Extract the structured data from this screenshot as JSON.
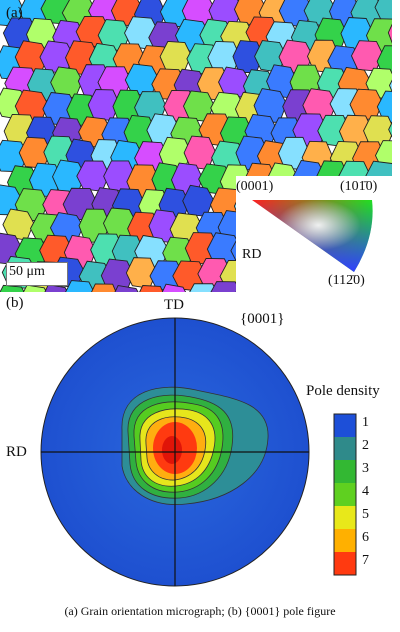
{
  "panel_a": {
    "label": "(a)",
    "scale_bar": "50 μm",
    "ipf_key": {
      "corner_0001": "(0001)",
      "corner_10m10": "(101̄0)",
      "corner_11m20": "(112̄0)",
      "direction": "RD",
      "colors": {
        "red": "#ff2020",
        "green": "#20d020",
        "blue": "#2040ff"
      }
    }
  },
  "panel_b": {
    "label": "(b)",
    "plane": "{0001}",
    "td_label": "TD",
    "rd_label": "RD",
    "legend_title": "Pole density",
    "levels": [
      "1",
      "2",
      "3",
      "4",
      "5",
      "6",
      "7"
    ],
    "colors": [
      "#1d4fd8",
      "#2f8a8a",
      "#33b833",
      "#5fd020",
      "#e8e81a",
      "#ffb000",
      "#ff3a10"
    ]
  },
  "caption": "(a)  Grain orientation micrograph; (b) {0001} pole figure"
}
